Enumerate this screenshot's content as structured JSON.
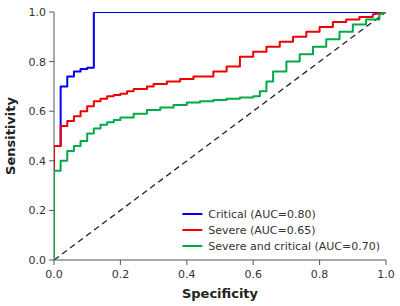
{
  "chart_data": {
    "type": "line",
    "xlabel": "Specificity",
    "ylabel": "Sensitivity",
    "xlim": [
      0.0,
      1.0
    ],
    "ylim": [
      0.0,
      1.0
    ],
    "xticks": [
      {
        "value": 0.0,
        "label": "0.0"
      },
      0.2,
      0.4,
      0.6,
      0.8,
      {
        "value": 1.0,
        "label": "1.0"
      }
    ],
    "yticks": [
      {
        "value": 0.0,
        "label": "0.0"
      },
      0.2,
      0.4,
      0.6,
      0.8,
      {
        "value": 1.0,
        "label": "1.0"
      }
    ],
    "grid": false,
    "legend": "lower right",
    "series": [
      {
        "color": "#222222",
        "line_style": "dashed",
        "x": [
          0,
          1
        ],
        "values": [
          0,
          1
        ]
      },
      {
        "name": "Critical (AUC=0.80)",
        "color": "#0000EE",
        "line_style": "solid",
        "x": [
          0.0,
          0.0,
          0.0,
          0.02,
          0.02,
          0.04,
          0.04,
          0.06,
          0.06,
          0.08,
          0.08,
          0.1,
          0.1,
          0.12,
          0.12,
          0.55,
          0.55,
          0.58,
          0.58,
          0.62,
          0.62,
          0.66,
          0.66,
          0.7,
          0.7,
          0.74,
          0.74,
          0.8,
          0.8,
          0.86,
          0.86,
          0.92,
          0.92,
          0.96,
          0.96,
          1.0
        ],
        "values": [
          0.0,
          0.0,
          0.46,
          0.46,
          0.7,
          0.7,
          0.74,
          0.74,
          0.76,
          0.76,
          0.77,
          0.77,
          0.775,
          0.775,
          1.0,
          1.0,
          1.0,
          1.0,
          1.0,
          1.0,
          1.0,
          1.0,
          1.0,
          1.0,
          1.0,
          1.0,
          1.0,
          1.0,
          1.0,
          1.0,
          1.0,
          1.0,
          1.0,
          1.0,
          1.0,
          1.0
        ]
      },
      {
        "name": "Severe (AUC=0.65)",
        "color": "#EE0000",
        "line_style": "solid",
        "x": [
          0.0,
          0.0,
          0.0,
          0.02,
          0.02,
          0.04,
          0.04,
          0.06,
          0.06,
          0.08,
          0.08,
          0.1,
          0.1,
          0.12,
          0.12,
          0.14,
          0.14,
          0.16,
          0.16,
          0.18,
          0.18,
          0.2,
          0.2,
          0.22,
          0.22,
          0.24,
          0.24,
          0.28,
          0.28,
          0.3,
          0.3,
          0.34,
          0.34,
          0.38,
          0.38,
          0.42,
          0.42,
          0.48,
          0.48,
          0.52,
          0.52,
          0.56,
          0.56,
          0.6,
          0.6,
          0.64,
          0.64,
          0.68,
          0.68,
          0.72,
          0.72,
          0.76,
          0.76,
          0.8,
          0.8,
          0.84,
          0.84,
          0.88,
          0.88,
          0.92,
          0.92,
          0.96,
          0.96,
          1.0
        ],
        "values": [
          0.0,
          0.0,
          0.46,
          0.46,
          0.54,
          0.54,
          0.56,
          0.56,
          0.58,
          0.58,
          0.6,
          0.6,
          0.62,
          0.62,
          0.64,
          0.64,
          0.65,
          0.65,
          0.66,
          0.66,
          0.665,
          0.665,
          0.67,
          0.67,
          0.68,
          0.68,
          0.69,
          0.69,
          0.7,
          0.7,
          0.71,
          0.71,
          0.72,
          0.72,
          0.73,
          0.73,
          0.74,
          0.74,
          0.76,
          0.76,
          0.78,
          0.78,
          0.82,
          0.82,
          0.84,
          0.84,
          0.86,
          0.86,
          0.88,
          0.88,
          0.9,
          0.9,
          0.92,
          0.92,
          0.94,
          0.94,
          0.96,
          0.96,
          0.97,
          0.97,
          0.98,
          0.98,
          0.99,
          1.0
        ]
      },
      {
        "name": "Severe and critical (AUC=0.70)",
        "color": "#00AA44",
        "line_style": "solid",
        "x": [
          0.0,
          0.0,
          0.0,
          0.02,
          0.02,
          0.04,
          0.04,
          0.06,
          0.06,
          0.08,
          0.08,
          0.1,
          0.1,
          0.12,
          0.12,
          0.14,
          0.14,
          0.16,
          0.16,
          0.18,
          0.18,
          0.2,
          0.2,
          0.24,
          0.24,
          0.28,
          0.28,
          0.32,
          0.32,
          0.36,
          0.36,
          0.4,
          0.4,
          0.44,
          0.44,
          0.48,
          0.48,
          0.52,
          0.52,
          0.56,
          0.56,
          0.6,
          0.6,
          0.62,
          0.62,
          0.64,
          0.64,
          0.66,
          0.66,
          0.7,
          0.7,
          0.74,
          0.74,
          0.78,
          0.78,
          0.82,
          0.82,
          0.86,
          0.86,
          0.9,
          0.9,
          0.94,
          0.94,
          0.98,
          0.98,
          1.0
        ],
        "values": [
          0.0,
          0.0,
          0.36,
          0.36,
          0.4,
          0.4,
          0.44,
          0.44,
          0.46,
          0.46,
          0.48,
          0.48,
          0.51,
          0.51,
          0.53,
          0.53,
          0.545,
          0.545,
          0.555,
          0.555,
          0.565,
          0.565,
          0.575,
          0.575,
          0.59,
          0.59,
          0.605,
          0.605,
          0.615,
          0.615,
          0.625,
          0.625,
          0.635,
          0.635,
          0.64,
          0.64,
          0.645,
          0.645,
          0.65,
          0.65,
          0.655,
          0.655,
          0.66,
          0.66,
          0.68,
          0.68,
          0.72,
          0.72,
          0.76,
          0.76,
          0.8,
          0.8,
          0.83,
          0.83,
          0.86,
          0.86,
          0.89,
          0.89,
          0.92,
          0.92,
          0.95,
          0.95,
          0.97,
          0.97,
          0.99,
          1.0
        ]
      }
    ]
  }
}
